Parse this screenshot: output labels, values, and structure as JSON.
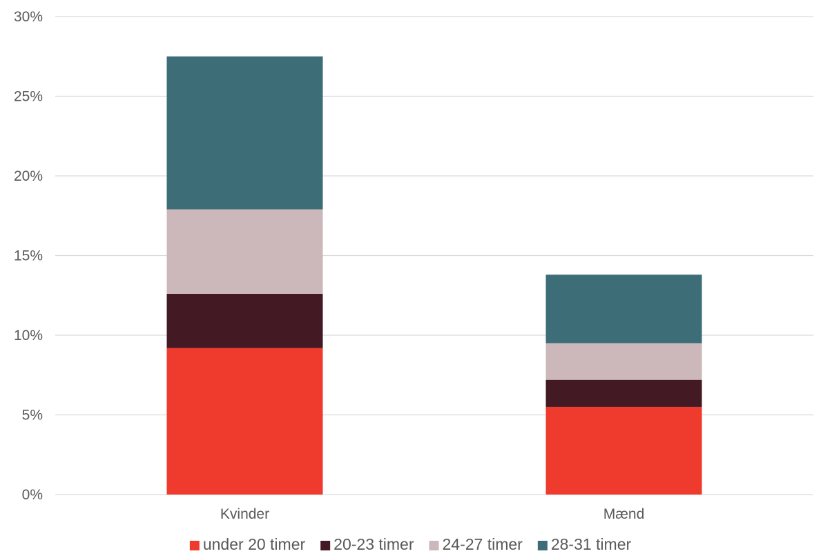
{
  "chart_data": {
    "type": "bar",
    "stacked": true,
    "categories": [
      "Kvinder",
      "Mænd"
    ],
    "series": [
      {
        "name": "under 20 timer",
        "color": "#ef3b2d",
        "values": [
          9.2,
          5.5
        ]
      },
      {
        "name": "20-23 timer",
        "color": "#431a24",
        "values": [
          3.4,
          1.7
        ]
      },
      {
        "name": "24-27 timer",
        "color": "#ccb8ba",
        "values": [
          5.3,
          2.3
        ]
      },
      {
        "name": "28-31 timer",
        "color": "#3d6e78",
        "values": [
          9.6,
          4.3
        ]
      }
    ],
    "ylim": [
      0,
      30
    ],
    "yticks": [
      0,
      5,
      10,
      15,
      20,
      25,
      30
    ],
    "ytick_labels": [
      "0%",
      "5%",
      "10%",
      "15%",
      "20%",
      "25%",
      "30%"
    ],
    "grid": true,
    "legend_position": "bottom",
    "title": "",
    "xlabel": "",
    "ylabel": ""
  }
}
